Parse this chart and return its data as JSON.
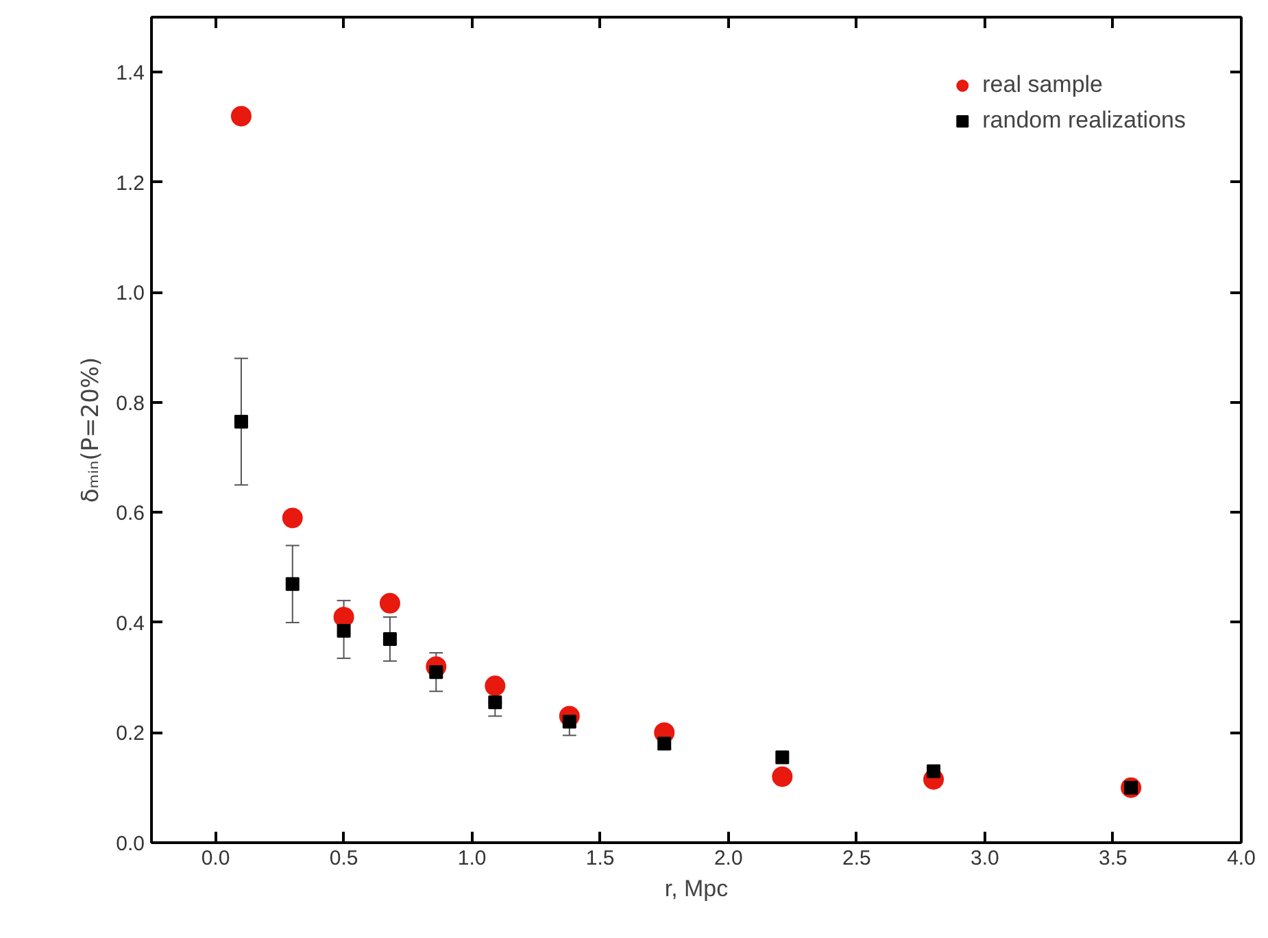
{
  "chart_data": {
    "type": "scatter",
    "xlabel": "r, Mpc",
    "ylabel": "δₘᵢₙ(P=20%)",
    "x": [
      0.1,
      0.3,
      0.5,
      0.68,
      0.86,
      1.09,
      1.38,
      1.75,
      2.21,
      2.8,
      3.57
    ],
    "series": [
      {
        "name": "real sample",
        "color": "#e8190f",
        "marker": "circle",
        "values": [
          1.32,
          0.59,
          0.41,
          0.435,
          0.32,
          0.285,
          0.23,
          0.2,
          0.12,
          0.115,
          0.1
        ]
      },
      {
        "name": "random realizations",
        "color": "#000000",
        "marker": "square",
        "values": [
          0.765,
          0.47,
          0.385,
          0.37,
          0.31,
          0.255,
          0.22,
          0.18,
          0.155,
          0.13,
          0.1
        ],
        "errors": [
          [
            0.65,
            0.88
          ],
          [
            0.4,
            0.54
          ],
          [
            0.335,
            0.44
          ],
          [
            0.33,
            0.41
          ],
          [
            0.275,
            0.345
          ],
          [
            0.23,
            0.255
          ],
          [
            0.195,
            0.24
          ],
          [
            0.17,
            0.2
          ],
          null,
          null,
          null
        ]
      }
    ],
    "xlim": [
      -0.25,
      4.0
    ],
    "xticks": [
      {
        "value": 0.0,
        "label": "0.0"
      },
      {
        "value": 0.5,
        "label": "0.5"
      },
      {
        "value": 1.0,
        "label": "1.0"
      },
      {
        "value": 1.5,
        "label": "1.5"
      },
      {
        "value": 2.0,
        "label": "2.0"
      },
      {
        "value": 2.5,
        "label": "2.5"
      },
      {
        "value": 3.0,
        "label": "3.0"
      },
      {
        "value": 3.5,
        "label": "3.5"
      },
      {
        "value": 4.0,
        "label": "4.0"
      }
    ],
    "ylim": [
      0.0,
      1.5
    ],
    "yticks": [
      {
        "value": 0.0,
        "label": "0.0"
      },
      {
        "value": 0.2,
        "label": "0.2"
      },
      {
        "value": 0.4,
        "label": "0.4"
      },
      {
        "value": 0.6,
        "label": "0.6"
      },
      {
        "value": 0.8,
        "label": "0.8"
      },
      {
        "value": 1.0,
        "label": "1.0"
      },
      {
        "value": 1.2,
        "label": "1.2"
      },
      {
        "value": 1.4,
        "label": "1.4"
      }
    ],
    "grid": false,
    "legend": "top right"
  }
}
